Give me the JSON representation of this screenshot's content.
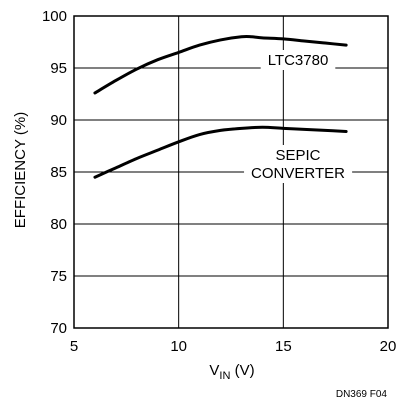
{
  "chart_data": {
    "type": "line",
    "xlabel": "V",
    "xlabel_subscript": "IN",
    "xlabel_unit": " (V)",
    "ylabel": "EFFICIENCY (%)",
    "xlim": [
      5,
      20
    ],
    "ylim": [
      70,
      100
    ],
    "xticks": [
      5,
      10,
      15,
      20
    ],
    "yticks": [
      70,
      75,
      80,
      85,
      90,
      95,
      100
    ],
    "grid": true,
    "series": [
      {
        "name": "LTC3780",
        "label_lines": [
          "LTC3780"
        ],
        "x": [
          6,
          7,
          8,
          9,
          10,
          11,
          12,
          13,
          13.5,
          14,
          15,
          16,
          17,
          18
        ],
        "y": [
          92.6,
          93.8,
          94.9,
          95.8,
          96.5,
          97.2,
          97.7,
          98.0,
          98.0,
          97.9,
          97.8,
          97.6,
          97.4,
          97.2
        ]
      },
      {
        "name": "SEPIC CONVERTER",
        "label_lines": [
          "SEPIC",
          "CONVERTER"
        ],
        "x": [
          6,
          7,
          8,
          9,
          10,
          11,
          12,
          13,
          14,
          15,
          16,
          17,
          18
        ],
        "y": [
          84.5,
          85.4,
          86.3,
          87.1,
          87.9,
          88.6,
          89.0,
          89.2,
          89.3,
          89.2,
          89.1,
          89.0,
          88.9
        ]
      }
    ],
    "figure_id": "DN369 F04"
  }
}
